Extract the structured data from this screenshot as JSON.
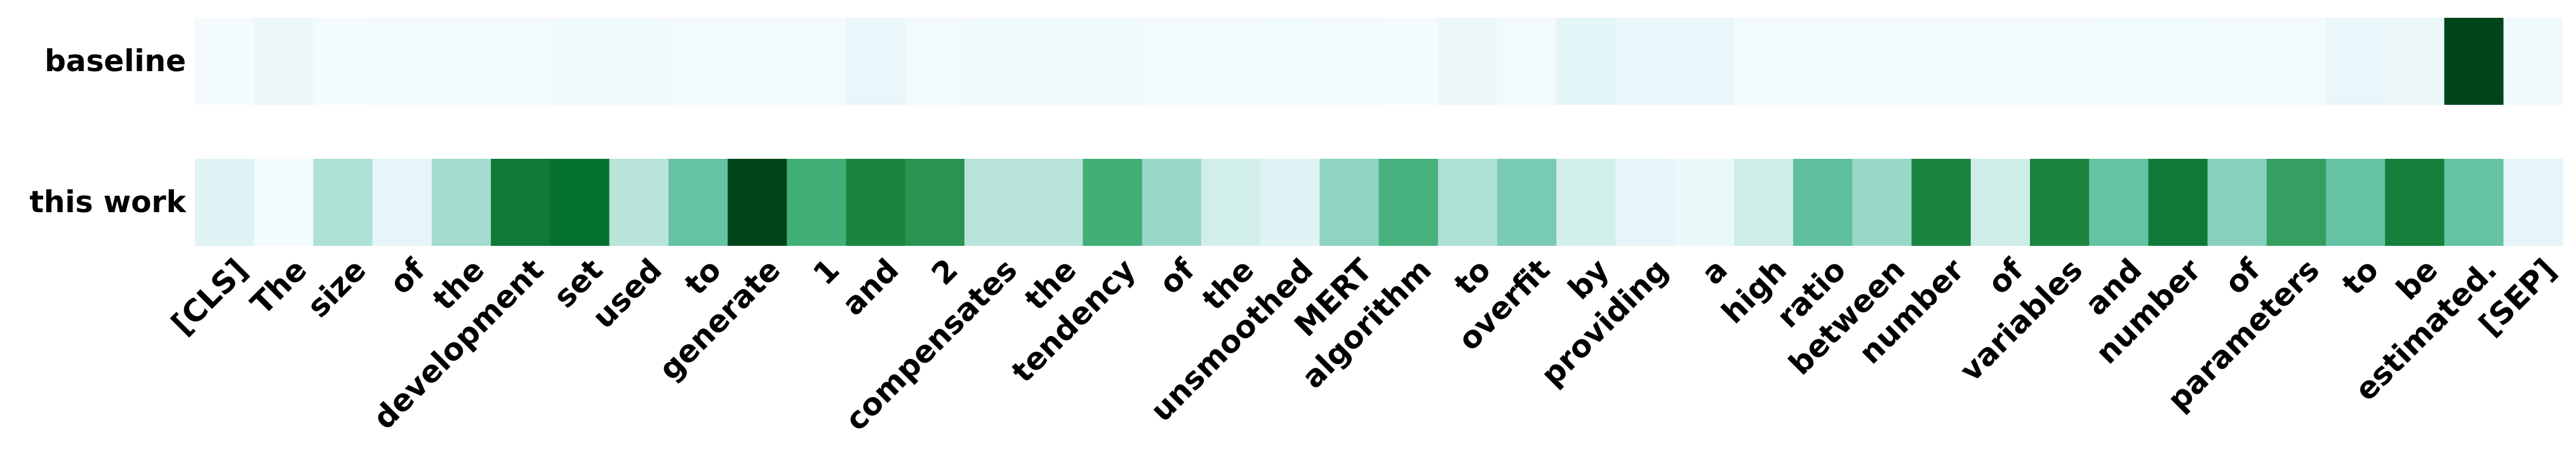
{
  "chart_data": {
    "type": "heatmap",
    "rows": [
      "baseline",
      "this work"
    ],
    "tokens": [
      "[CLS]",
      "The",
      "size",
      "of",
      "the",
      "development",
      "set",
      "used",
      "to",
      "generate",
      "1",
      "and",
      "2",
      "compensates",
      "the",
      "tendency",
      "of",
      "the",
      "unsmoothed",
      "MERT",
      "algorithm",
      "to",
      "overfit",
      "by",
      "providing",
      "a",
      "high",
      "ratio",
      "between",
      "number",
      "of",
      "variables",
      "and",
      "number",
      "of",
      "parameters",
      "to",
      "be",
      "estimated.",
      "[SEP]"
    ],
    "values": [
      [
        0.02,
        0.07,
        0.02,
        0.03,
        0.03,
        0.03,
        0.05,
        0.05,
        0.03,
        0.03,
        0.03,
        0.1,
        0.03,
        0.05,
        0.05,
        0.05,
        0.03,
        0.03,
        0.04,
        0.03,
        0.02,
        0.07,
        0.03,
        0.13,
        0.09,
        0.09,
        0.03,
        0.03,
        0.03,
        0.03,
        0.03,
        0.03,
        0.04,
        0.04,
        0.03,
        0.03,
        0.1,
        0.07,
        1.0,
        0.05
      ],
      [
        0.15,
        0.02,
        0.32,
        0.12,
        0.35,
        0.82,
        0.86,
        0.3,
        0.5,
        1.0,
        0.62,
        0.78,
        0.72,
        0.3,
        0.3,
        0.62,
        0.38,
        0.22,
        0.15,
        0.4,
        0.6,
        0.32,
        0.45,
        0.22,
        0.12,
        0.08,
        0.24,
        0.52,
        0.38,
        0.78,
        0.24,
        0.78,
        0.5,
        0.82,
        0.42,
        0.68,
        0.5,
        0.8,
        0.5,
        0.12
      ]
    ],
    "colormap": "BuGn",
    "colors": [
      "#f7fcfd",
      "#e5f5f9",
      "#ccece6",
      "#99d8c9",
      "#66c2a4",
      "#41ae76",
      "#238b45",
      "#006d2c",
      "#00441b"
    ],
    "grid": false
  }
}
